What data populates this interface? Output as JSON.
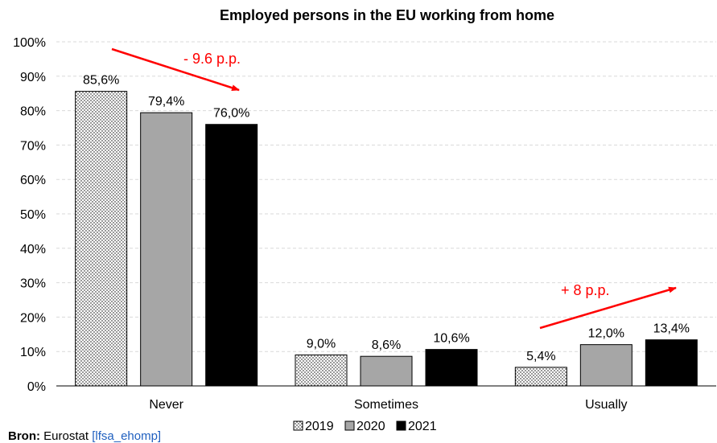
{
  "chart_data": {
    "type": "bar",
    "title": "Employed persons in the EU working from home",
    "categories": [
      "Never",
      "Sometimes",
      "Usually"
    ],
    "series": [
      {
        "name": "2019",
        "values": [
          85.6,
          9.0,
          5.4
        ],
        "labels": [
          "85,6%",
          "9,0%",
          "5,4%"
        ],
        "fill": "dotted",
        "color": "#ffffff"
      },
      {
        "name": "2020",
        "values": [
          79.4,
          8.6,
          12.0
        ],
        "labels": [
          "79,4%",
          "8,6%",
          "12,0%"
        ],
        "fill": "solid",
        "color": "#a6a6a6"
      },
      {
        "name": "2021",
        "values": [
          76.0,
          10.6,
          13.4
        ],
        "labels": [
          "76,0%",
          "10,6%",
          "13,4%"
        ],
        "fill": "solid",
        "color": "#000000"
      }
    ],
    "ylim": [
      0,
      100
    ],
    "yticks": [
      "0%",
      "10%",
      "20%",
      "30%",
      "40%",
      "50%",
      "60%",
      "70%",
      "80%",
      "90%",
      "100%"
    ],
    "grid": true,
    "legend_position": "bottom",
    "annotations": [
      {
        "text": "- 9.6 p.p.",
        "color": "#ff0000"
      },
      {
        "text": "+ 8 p.p.",
        "color": "#ff0000"
      }
    ]
  },
  "source": {
    "label": "Bron:",
    "text": "Eurostat",
    "link": "[lfsa_ehomp]"
  }
}
